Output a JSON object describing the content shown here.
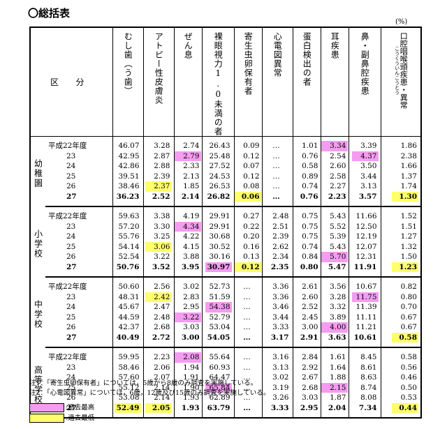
{
  "title": "〇総括表",
  "unit": "(%)",
  "header": {
    "kubun": [
      "区",
      "分"
    ],
    "columns": [
      "むし歯（う歯）",
      "アトピー性皮膚炎",
      "ぜん息",
      "裸眼視力1.0未満の者",
      "寄生虫卵保有者",
      "心電図異常",
      "蛋白検出の者",
      "耳疾患",
      "鼻・副鼻腔疾患",
      "口腔咽喉頭疾患・異常"
    ],
    "last_column_ruby": "こうくういんこうとう"
  },
  "groups": [
    {
      "name": "幼稚園",
      "rows": [
        {
          "year": "平成22年度",
          "values": [
            "46.07",
            "3.28",
            "2.74",
            "26.43",
            "0.09",
            "…",
            "1.01",
            "3.34",
            "3.39",
            "1.86"
          ],
          "pink": [
            7
          ],
          "yellow": [],
          "bold": false
        },
        {
          "year": "23",
          "values": [
            "42.95",
            "2.87",
            "2.79",
            "25.48",
            "0.12",
            "…",
            "0.76",
            "2.54",
            "4.37",
            "2.38"
          ],
          "pink": [
            2,
            8
          ],
          "yellow": [],
          "bold": false
        },
        {
          "year": "24",
          "values": [
            "42.86",
            "2.88",
            "2.33",
            "27.52",
            "0.07",
            "…",
            "0.58",
            "2.60",
            "3.50",
            "1.66"
          ],
          "pink": [],
          "yellow": [],
          "bold": false
        },
        {
          "year": "25",
          "values": [
            "39.51",
            "2.39",
            "2.13",
            "24.53",
            "0.12",
            "…",
            "0.89",
            "2.58",
            "3.44",
            "1.37"
          ],
          "pink": [],
          "yellow": [],
          "bold": false
        },
        {
          "year": "26",
          "values": [
            "38.46",
            "2.37",
            "1.85",
            "26.53",
            "0.08",
            "…",
            "0.74",
            "2.27",
            "3.13",
            "1.74"
          ],
          "pink": [],
          "yellow": [
            1
          ],
          "bold": false
        },
        {
          "year": "27",
          "values": [
            "36.23",
            "2.52",
            "2.14",
            "26.82",
            "0.06",
            "…",
            "0.76",
            "2.23",
            "3.57",
            "1.30"
          ],
          "pink": [],
          "yellow": [
            4,
            9
          ],
          "bold": true
        }
      ]
    },
    {
      "name": "小学校",
      "rows": [
        {
          "year": "平成22年度",
          "values": [
            "59.63",
            "3.38",
            "4.19",
            "29.91",
            "0.27",
            "2.48",
            "0.75",
            "5.43",
            "11.66",
            "1.52"
          ],
          "pink": [],
          "yellow": [],
          "bold": false
        },
        {
          "year": "23",
          "values": [
            "57.20",
            "3.30",
            "4.34",
            "29.91",
            "0.22",
            "2.51",
            "0.75",
            "5.52",
            "12.50",
            "1.51"
          ],
          "pink": [
            2
          ],
          "yellow": [],
          "bold": false
        },
        {
          "year": "24",
          "values": [
            "55.76",
            "3.25",
            "4.22",
            "30.68",
            "0.20",
            "2.39",
            "0.75",
            "5.39",
            "12.19",
            "1.27"
          ],
          "pink": [],
          "yellow": [],
          "bold": false
        },
        {
          "year": "25",
          "values": [
            "54.14",
            "3.06",
            "4.15",
            "30.52",
            "0.16",
            "2.62",
            "0.74",
            "5.43",
            "12.07",
            "1.32"
          ],
          "pink": [],
          "yellow": [
            1
          ],
          "bold": false
        },
        {
          "year": "26",
          "values": [
            "52.54",
            "3.22",
            "3.88",
            "30.16",
            "0.13",
            "2.34",
            "0.84",
            "5.70",
            "12.31",
            "1.50"
          ],
          "pink": [
            7
          ],
          "yellow": [],
          "bold": false
        },
        {
          "year": "27",
          "values": [
            "50.76",
            "3.52",
            "3.95",
            "30.97",
            "0.12",
            "2.35",
            "0.80",
            "5.47",
            "11.91",
            "1.23"
          ],
          "pink": [
            3
          ],
          "yellow": [
            4,
            9
          ],
          "bold": true
        }
      ]
    },
    {
      "name": "中学校",
      "rows": [
        {
          "year": "平成22年度",
          "values": [
            "50.60",
            "2.56",
            "3.02",
            "52.73",
            "…",
            "3.36",
            "2.61",
            "3.56",
            "10.67",
            "0.82"
          ],
          "pink": [],
          "yellow": [],
          "bold": false
        },
        {
          "year": "23",
          "values": [
            "48.31",
            "2.42",
            "2.83",
            "51.59",
            "…",
            "3.36",
            "2.60",
            "3.28",
            "11.75",
            "0.80"
          ],
          "pink": [
            8
          ],
          "yellow": [
            1
          ],
          "bold": false
        },
        {
          "year": "24",
          "values": [
            "45.67",
            "2.47",
            "2.95",
            "54.38",
            "…",
            "3.46",
            "2.52",
            "3.32",
            "11.39",
            "0.70"
          ],
          "pink": [
            3
          ],
          "yellow": [],
          "bold": false
        },
        {
          "year": "25",
          "values": [
            "44.59",
            "2.48",
            "3.22",
            "52.79",
            "…",
            "3.44",
            "2.45",
            "3.89",
            "11.11",
            "0.67"
          ],
          "pink": [
            2
          ],
          "yellow": [],
          "bold": false
        },
        {
          "year": "26",
          "values": [
            "42.37",
            "2.68",
            "3.03",
            "53.04",
            "…",
            "3.33",
            "3.00",
            "4.00",
            "11.21",
            "0.67"
          ],
          "pink": [
            7
          ],
          "yellow": [],
          "bold": false
        },
        {
          "year": "27",
          "values": [
            "40.49",
            "2.72",
            "3.00",
            "54.05",
            "…",
            "3.17",
            "2.91",
            "3.63",
            "10.61",
            "0.58"
          ],
          "pink": [],
          "yellow": [
            9
          ],
          "bold": true
        }
      ]
    },
    {
      "name": "高等学校",
      "rows": [
        {
          "year": "平成22年度",
          "values": [
            "59.95",
            "2.23",
            "2.08",
            "55.64",
            "…",
            "3.16",
            "2.84",
            "1.61",
            "8.45",
            "0.58"
          ],
          "pink": [
            2
          ],
          "yellow": [],
          "bold": false
        },
        {
          "year": "23",
          "values": [
            "58.46",
            "2.06",
            "1.94",
            "60.93",
            "…",
            "3.13",
            "2.92",
            "1.64",
            "8.61",
            "0.56"
          ],
          "pink": [],
          "yellow": [],
          "bold": false
        },
        {
          "year": "24",
          "values": [
            "57.60",
            "2.07",
            "1.91",
            "64.47",
            "…",
            "3.02",
            "2.67",
            "1.88",
            "8.63",
            "0.46"
          ],
          "pink": [],
          "yellow": [],
          "bold": false
        },
        {
          "year": "25",
          "values": [
            "55.12",
            "2.14",
            "1.90",
            "65.84",
            "…",
            "3.19",
            "2.68",
            "2.15",
            "8.74",
            "0.50"
          ],
          "pink": [
            3,
            7
          ],
          "yellow": [],
          "bold": false
        },
        {
          "year": "26",
          "values": [
            "53.08",
            "2.14",
            "1.93",
            "62.89",
            "…",
            "3.26",
            "3.03",
            "1.87",
            "8.08",
            "0.53"
          ],
          "pink": [],
          "yellow": [],
          "bold": false
        },
        {
          "year": "27",
          "values": [
            "52.49",
            "2.05",
            "1.93",
            "63.79",
            "…",
            "3.33",
            "2.95",
            "2.04",
            "7.34",
            "0.44"
          ],
          "pink": [],
          "yellow": [
            0,
            1,
            9
          ],
          "bold": true
        }
      ]
    }
  ],
  "notes": [
    "注1：「寄生虫卵保有者」については，5歳から8歳のみ調査を実施している。",
    "注2：「心電図異常」については，6歳，12歳及び15歳のみ調査を実施している。"
  ],
  "legend": {
    "pink_label": ":過去最高",
    "yellow_label": ":過去最低",
    "pink_color": "#f49cf0",
    "yellow_color": "#ffff6b"
  }
}
